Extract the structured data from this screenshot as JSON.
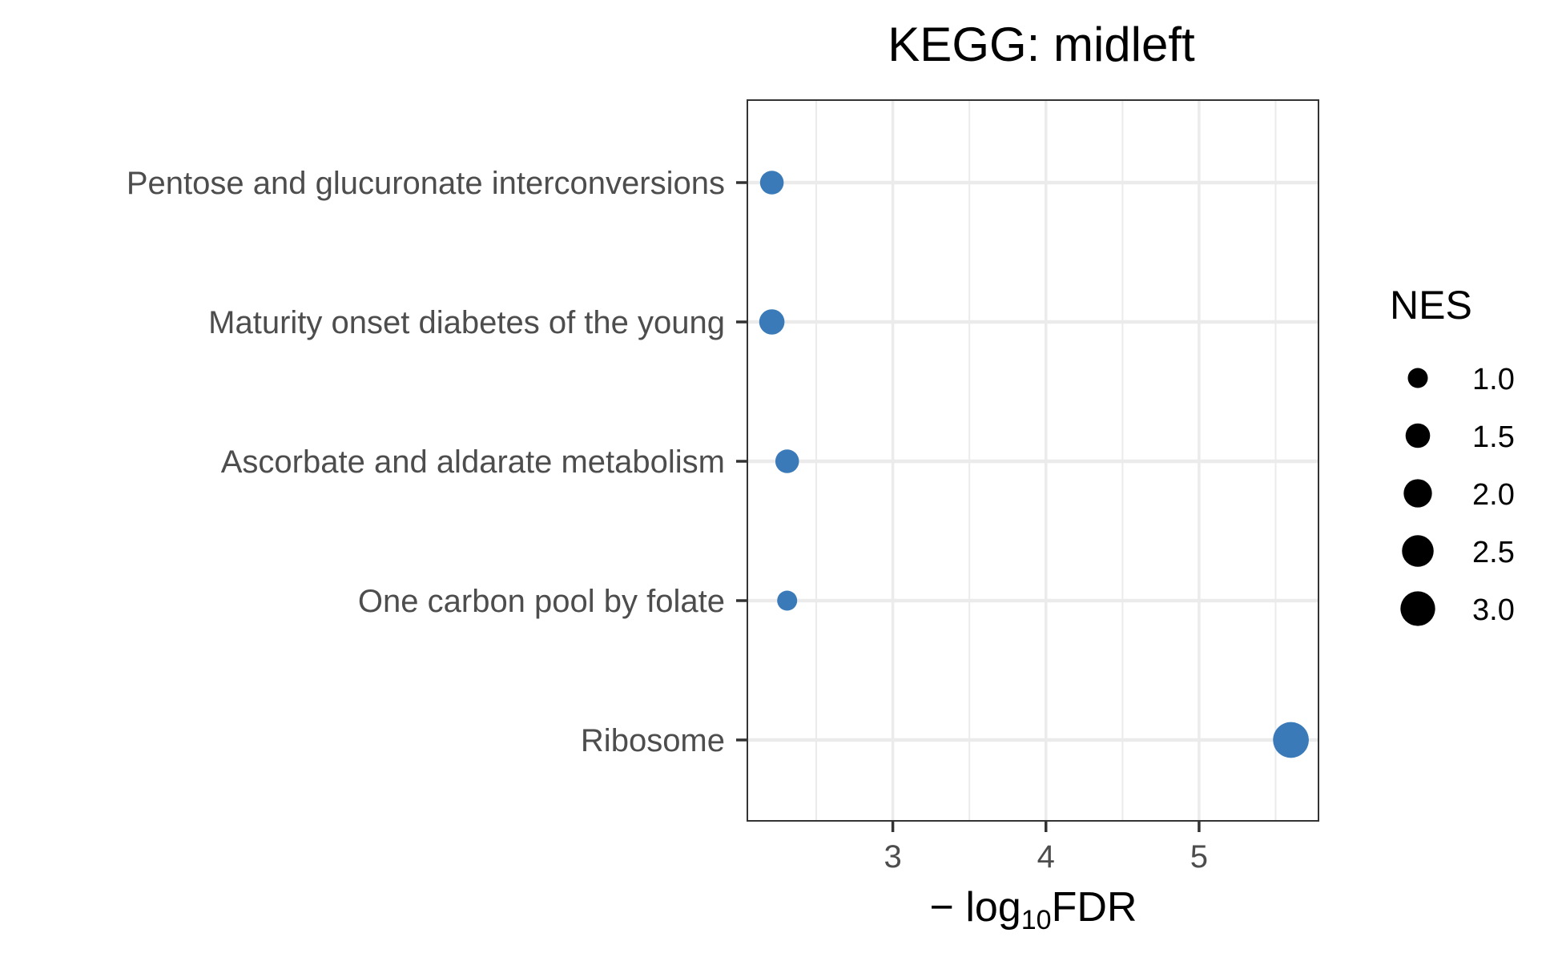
{
  "chart_data": {
    "type": "scatter",
    "title": "KEGG: midleft",
    "xlabel_prefix": "− log",
    "xlabel_sub": "10",
    "xlabel_suffix": "FDR",
    "ylabel": "",
    "xlim": [
      2.05,
      5.78
    ],
    "x_ticks": [
      3,
      4,
      5
    ],
    "x_minor_ticks": [
      2.5,
      3.5,
      4.5,
      5.5
    ],
    "grid": true,
    "point_color": "#3a7ab8",
    "categories": [
      "Pentose and glucuronate interconversions",
      "Maturity onset diabetes of the young",
      "Ascorbate and aldarate metabolism",
      "One carbon pool by folate",
      "Ribosome"
    ],
    "points": [
      {
        "category": "Pentose and glucuronate interconversions",
        "x": 2.21,
        "size": 1.4
      },
      {
        "category": "Maturity onset diabetes of the young",
        "x": 2.21,
        "size": 1.6
      },
      {
        "category": "Ascorbate and aldarate metabolism",
        "x": 2.31,
        "size": 1.4
      },
      {
        "category": "One carbon pool by folate",
        "x": 2.31,
        "size": 1.0
      },
      {
        "category": "Ribosome",
        "x": 5.6,
        "size": 3.2
      }
    ],
    "legend": {
      "title": "NES",
      "position": "right",
      "values": [
        1.0,
        1.5,
        2.0,
        2.5,
        3.0
      ],
      "labels": [
        "1.0",
        "1.5",
        "2.0",
        "2.5",
        "3.0"
      ],
      "color": "#000000"
    }
  }
}
